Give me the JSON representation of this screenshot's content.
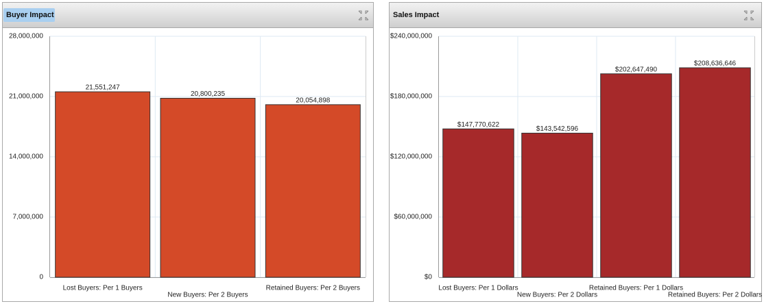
{
  "chart_data": [
    {
      "type": "bar",
      "title": "Buyer Impact",
      "categories": [
        "Lost Buyers: Per 1 Buyers",
        "New Buyers: Per 2 Buyers",
        "Retained Buyers: Per 2 Buyers"
      ],
      "values": [
        21551247,
        20800235,
        20054898
      ],
      "value_labels": [
        "21,551,247",
        "20,800,235",
        "20,054,898"
      ],
      "color": "#d44a28",
      "ylim": [
        0,
        28000000
      ],
      "yticks": [
        0,
        {
          "value": 7000000,
          "label": "7,000,000"
        },
        {
          "value": 14000000,
          "label": "14,000,000"
        },
        {
          "value": 21000000,
          "label": "21,000,000"
        },
        {
          "value": 28000000,
          "label": "28,000,000"
        }
      ],
      "grid": true
    },
    {
      "type": "bar",
      "title": "Sales Impact",
      "categories": [
        "Lost Buyers: Per 1 Dollars",
        "New Buyers: Per 2 Dollars",
        "Retained Buyers: Per 1 Dollars",
        "Retained Buyers: Per 2 Dollars"
      ],
      "values": [
        147770622,
        143542596,
        202647490,
        208636646
      ],
      "value_labels": [
        "$147,770,622",
        "$143,542,596",
        "$202,647,490",
        "$208,636,646"
      ],
      "color": "#a6292a",
      "ylim": [
        0,
        240000000
      ],
      "yticks": [
        {
          "value": 0,
          "label": "$0"
        },
        {
          "value": 60000000,
          "label": "$60,000,000"
        },
        {
          "value": 120000000,
          "label": "$120,000,000"
        },
        {
          "value": 180000000,
          "label": "$180,000,000"
        },
        {
          "value": 240000000,
          "label": "$240,000,000"
        }
      ],
      "grid": true
    }
  ]
}
